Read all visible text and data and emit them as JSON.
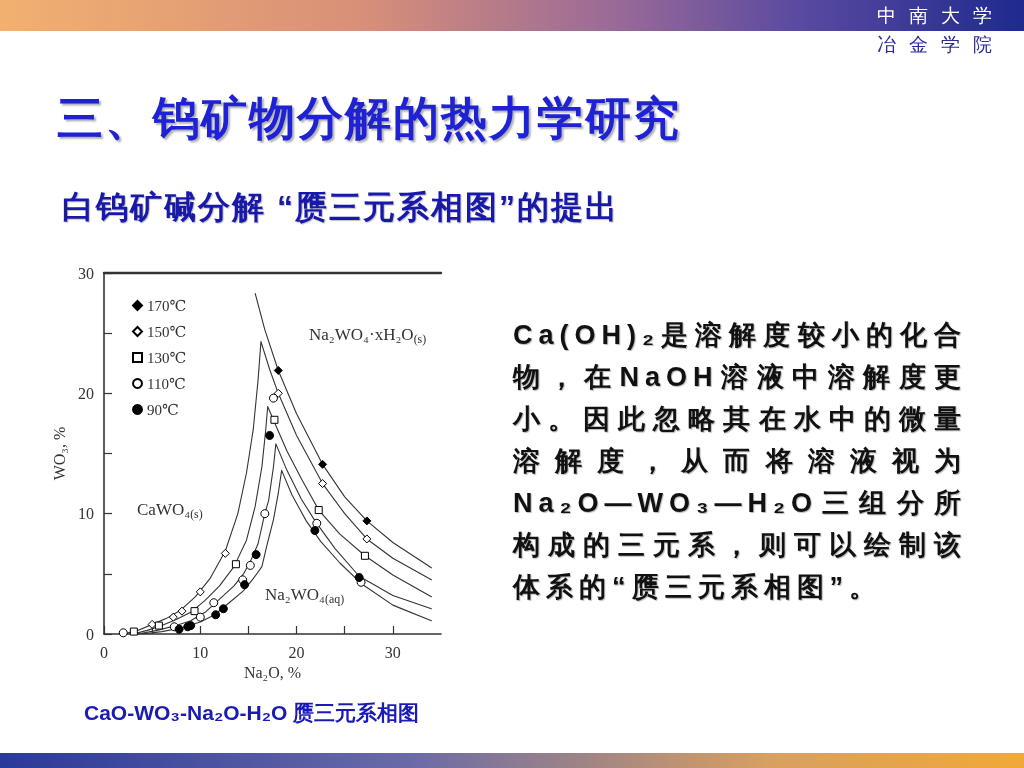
{
  "chart_data": {
    "type": "scatter",
    "title": "三、钨矿物分解的热力学研究",
    "subtitle": "白钨矿碱分解 “赝三元系相图”的提出",
    "xlabel": "Na₂O, %",
    "ylabel": "WO₃, %",
    "xlim": [
      0,
      35
    ],
    "xticks": [
      0,
      {
        "value": 5,
        "label": null
      },
      10,
      {
        "value": 15,
        "label": null
      },
      20,
      {
        "value": 25,
        "label": null
      },
      30
    ],
    "ylim": [
      0,
      30
    ],
    "yticks": [
      0,
      {
        "value": 5,
        "label": null
      },
      10,
      {
        "value": 15,
        "label": null
      },
      20,
      {
        "value": 25,
        "label": null
      },
      30
    ],
    "grid": false,
    "legend": "top left",
    "series": [
      {
        "name": "170℃",
        "marker": "diamond",
        "color": "#000000",
        "x": [
          18.1,
          22.7,
          27.3
        ],
        "values": [
          21.9,
          14.1,
          9.4
        ]
      },
      {
        "name": "150℃",
        "marker": "diamond",
        "color": "#ffffff",
        "x": [
          5.0,
          7.2,
          8.1,
          10.0,
          12.6,
          18.1,
          22.7,
          27.3
        ],
        "values": [
          0.8,
          1.4,
          1.9,
          3.5,
          6.7,
          20.0,
          12.5,
          7.9
        ]
      },
      {
        "name": "130℃",
        "marker": "square",
        "color": "#ffffff",
        "x": [
          3.1,
          5.7,
          9.4,
          13.7,
          17.7,
          22.3,
          27.1
        ],
        "values": [
          0.2,
          0.7,
          1.9,
          5.8,
          17.8,
          10.3,
          6.5
        ]
      },
      {
        "name": "110℃",
        "marker": "circle",
        "color": "#ffffff",
        "x": [
          2.0,
          7.3,
          10.0,
          11.4,
          14.4,
          15.2,
          16.7,
          17.6,
          22.1,
          26.7
        ],
        "values": [
          0.1,
          0.6,
          1.4,
          2.6,
          4.5,
          5.7,
          10.0,
          19.6,
          9.2,
          4.3
        ]
      },
      {
        "name": "90℃",
        "marker": "circle",
        "color": "#000000",
        "x": [
          7.8,
          8.7,
          9.0,
          11.6,
          12.4,
          14.6,
          15.8,
          17.2,
          21.9,
          26.5
        ],
        "values": [
          0.4,
          0.6,
          0.7,
          1.6,
          2.1,
          4.1,
          6.6,
          16.5,
          8.6,
          4.7
        ]
      },
      {
        "type": "line",
        "marker": "none",
        "color": "#333333",
        "x": [
          15.7,
          16.7,
          18.1,
          20.0,
          22.7,
          25.0,
          27.3,
          30.0,
          34.0
        ],
        "values": [
          28.3,
          25.3,
          21.9,
          18.3,
          14.1,
          11.4,
          9.4,
          7.6,
          5.5
        ]
      },
      {
        "type": "line",
        "marker": "none",
        "color": "#333333",
        "x": [
          2.0,
          3.5,
          5.0,
          6.5,
          8.0,
          9.5,
          11.0,
          12.6,
          13.9,
          14.8,
          15.5,
          16.0,
          16.3,
          17.2,
          18.1,
          20.0,
          22.7,
          25.0,
          27.3,
          30.0,
          34.0
        ],
        "values": [
          0,
          0.3,
          0.8,
          1.3,
          2.0,
          3.1,
          4.6,
          6.9,
          10.0,
          13.4,
          17.0,
          21.1,
          24.3,
          22.0,
          20.0,
          16.5,
          12.5,
          10.0,
          7.9,
          6.3,
          4.5
        ]
      },
      {
        "type": "line",
        "marker": "none",
        "color": "#333333",
        "x": [
          3.0,
          4.5,
          6.0,
          7.5,
          9.0,
          10.5,
          12.0,
          13.5,
          14.8,
          15.7,
          16.4,
          16.8,
          17.0,
          17.7,
          19.0,
          20.5,
          22.3,
          24.5,
          27.1,
          30.0,
          34.0
        ],
        "values": [
          0,
          0.3,
          0.7,
          1.2,
          1.8,
          2.8,
          4.0,
          5.6,
          7.8,
          10.6,
          13.9,
          17.0,
          18.9,
          17.6,
          15.2,
          12.9,
          10.3,
          8.3,
          6.5,
          4.9,
          3.1
        ]
      },
      {
        "type": "line",
        "marker": "none",
        "color": "#333333",
        "x": [
          3.5,
          5.5,
          7.5,
          9.0,
          10.5,
          12.0,
          13.5,
          14.5,
          15.3,
          16.0,
          16.7,
          17.1,
          17.6,
          17.85,
          19.0,
          20.5,
          22.0,
          24.0,
          26.5,
          30.0,
          34.0
        ],
        "values": [
          0,
          0.3,
          0.7,
          1.1,
          1.8,
          2.9,
          4.0,
          5.0,
          6.2,
          7.5,
          10.0,
          11.1,
          13.9,
          15.8,
          13.6,
          11.2,
          9.3,
          7.1,
          4.8,
          3.2,
          2.1
        ]
      },
      {
        "type": "line",
        "marker": "none",
        "color": "#333333",
        "x": [
          4.0,
          6.0,
          8.0,
          10.0,
          11.5,
          13.0,
          14.5,
          15.5,
          16.4,
          16.9,
          17.6,
          18.1,
          18.45,
          19.5,
          21.0,
          22.5,
          24.5,
          26.7,
          30.0,
          34.0
        ],
        "values": [
          0,
          0.2,
          0.5,
          1.0,
          1.6,
          2.6,
          3.6,
          4.6,
          5.6,
          7.3,
          9.5,
          11.7,
          13.6,
          11.6,
          9.4,
          7.7,
          5.9,
          4.2,
          2.4,
          1.1
        ]
      }
    ],
    "annotations": [
      "Na₂WO₄·xH₂O$_{(s)}$",
      "CaWO₄$_{(s)}$",
      "Na₂WO₄$_{(aq)}$",
      "Ca(OH)₂是溶解度较小的化合物，在NaOH溶液中溶解度更小。因此忽略其在水中的微量溶解度，从而将溶液视为Na₂O—WO₃—H₂O三组分所构成的三元系，则可以绘制该体系的“赝三元系相图”。",
      "CaO-WO₃-Na₂O-H₂O 赝三元系相图",
      "中南大学",
      "冶金学院"
    ]
  }
}
